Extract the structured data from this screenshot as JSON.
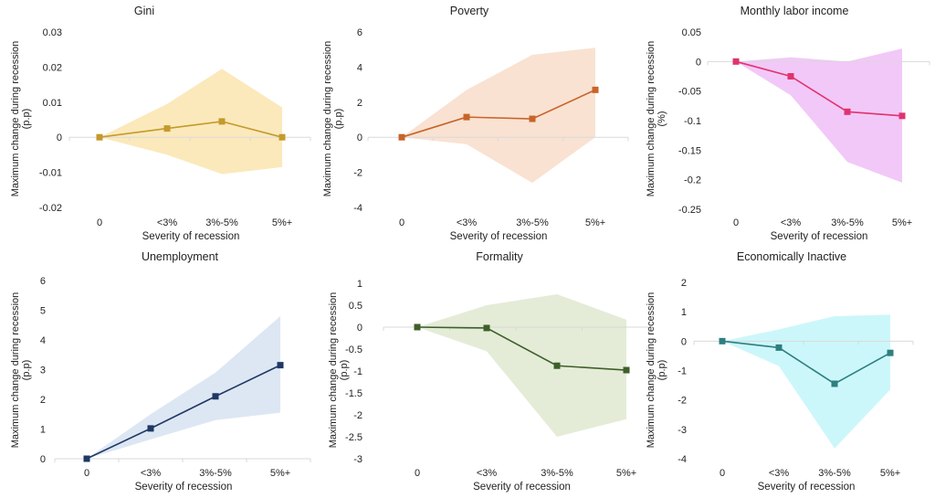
{
  "chart_data": [
    {
      "type": "line",
      "title": "Gini",
      "xlabel": "Severity of recession",
      "ylabel": "Maximum change during recession (p.p)",
      "categories": [
        "0",
        "<3%",
        "3%-5%",
        "5%+"
      ],
      "yticks": [
        "0.03",
        "0.02",
        "0.01",
        "0",
        "-0.01",
        "-0.02"
      ],
      "ylim": [
        -0.02,
        0.03
      ],
      "values": [
        0,
        0.0025,
        0.0045,
        0
      ],
      "upper": [
        0,
        0.0095,
        0.0195,
        0.0085
      ],
      "lower": [
        0,
        -0.005,
        -0.0105,
        -0.0085
      ],
      "line_color": "#c49a2c",
      "band_color": "#fbe9bb"
    },
    {
      "type": "line",
      "title": "Poverty",
      "xlabel": "Severity of recession",
      "ylabel": "Maximum change during recession (p.p)",
      "categories": [
        "0",
        "<3%",
        "3%-5%",
        "5%+"
      ],
      "yticks": [
        "6",
        "4",
        "2",
        "0",
        "-2",
        "-4"
      ],
      "ylim": [
        -4,
        6
      ],
      "values": [
        0,
        1.15,
        1.05,
        2.7
      ],
      "upper": [
        0,
        2.7,
        4.7,
        5.1
      ],
      "lower": [
        0,
        -0.4,
        -2.6,
        0
      ],
      "line_color": "#c8642a",
      "band_color": "#f9e2d2"
    },
    {
      "type": "line",
      "title": "Monthly labor income",
      "xlabel": "Severity of recession",
      "ylabel": "Maximum change during recession (%)",
      "categories": [
        "0",
        "<3%",
        "3%-5%",
        "5%+"
      ],
      "yticks": [
        "0.05",
        "0",
        "-0.05",
        "-0.1",
        "-0.15",
        "-0.2",
        "-0.25"
      ],
      "ylim": [
        -0.25,
        0.05
      ],
      "values": [
        0,
        -0.025,
        -0.085,
        -0.092
      ],
      "upper": [
        0,
        0.007,
        0,
        0.022
      ],
      "lower": [
        0,
        -0.057,
        -0.17,
        -0.205
      ],
      "line_color": "#e0336f",
      "band_color": "#f2c8f8"
    },
    {
      "type": "line",
      "title": "Unemployment",
      "xlabel": "Severity of recession",
      "ylabel": "Maximum change during recession (p.p)",
      "categories": [
        "0",
        "<3%",
        "3%-5%",
        "5%+"
      ],
      "yticks": [
        "6",
        "5",
        "4",
        "3",
        "2",
        "1",
        "0"
      ],
      "ylim": [
        0,
        6
      ],
      "values": [
        0,
        1.02,
        2.1,
        3.15
      ],
      "upper": [
        0,
        1.5,
        2.9,
        4.8
      ],
      "lower": [
        0,
        0.65,
        1.3,
        1.55
      ],
      "line_color": "#1f3864",
      "band_color": "#dde7f3"
    },
    {
      "type": "line",
      "title": "Formality",
      "xlabel": "Severity of recession",
      "ylabel": "Maximum change during recession (p.p)",
      "categories": [
        "0",
        "<3%",
        "3%-5%",
        "5%+"
      ],
      "yticks": [
        "1",
        "0.5",
        "0",
        "-0.5",
        "-1",
        "-1.5",
        "-2",
        "-2.5",
        "-3"
      ],
      "ylim": [
        -3,
        1
      ],
      "values": [
        0,
        -0.02,
        -0.88,
        -0.98
      ],
      "upper": [
        0,
        0.5,
        0.75,
        0.17
      ],
      "lower": [
        0,
        -0.55,
        -2.5,
        -2.1
      ],
      "line_color": "#3f5f2a",
      "band_color": "#e4ecd8"
    },
    {
      "type": "line",
      "title": "Economically Inactive",
      "xlabel": "Severity of recession",
      "ylabel": "Maximum change during recession (p.p)",
      "categories": [
        "0",
        "<3%",
        "3%-5%",
        "5%+"
      ],
      "yticks": [
        "2",
        "1",
        "0",
        "-1",
        "-2",
        "-3",
        "-4"
      ],
      "ylim": [
        -4,
        2
      ],
      "values": [
        0,
        -0.22,
        -1.45,
        -0.4
      ],
      "upper": [
        0,
        0.4,
        0.85,
        0.9
      ],
      "lower": [
        0,
        -0.85,
        -3.65,
        -1.65
      ],
      "line_color": "#2e7f7f",
      "band_color": "#ccf7fa"
    }
  ]
}
